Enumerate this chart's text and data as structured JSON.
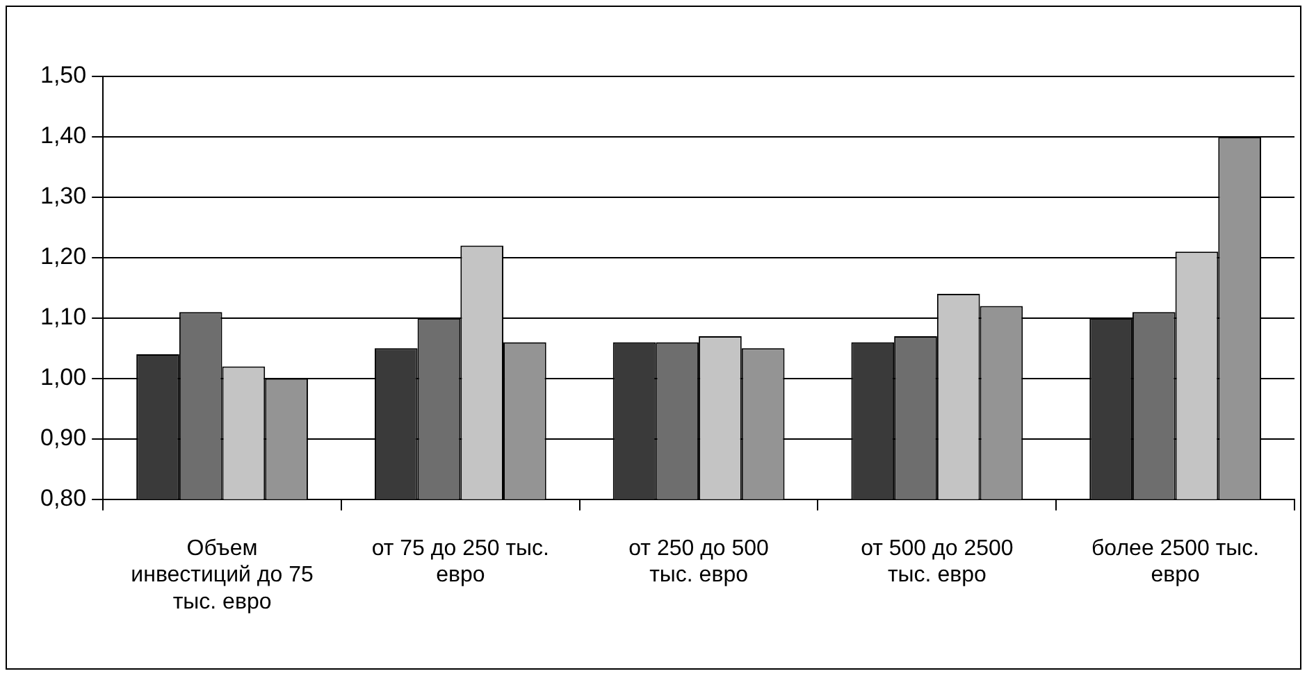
{
  "chart_data": {
    "type": "bar",
    "categories": [
      "Объем инвестиций до 75 тыс. евро",
      "от 75 до 250 тыс. евро",
      "от 250 до 500 тыс. евро",
      "от 500 до 2500 тыс. евро",
      "более 2500 тыс. евро"
    ],
    "series": [
      {
        "color": "#3a3a3a",
        "values": [
          1.04,
          1.05,
          1.06,
          1.06,
          1.1
        ]
      },
      {
        "color": "#6e6e6e",
        "values": [
          1.11,
          1.1,
          1.06,
          1.07,
          1.11
        ]
      },
      {
        "color": "#c4c4c4",
        "values": [
          1.02,
          1.22,
          1.07,
          1.14,
          1.21
        ]
      },
      {
        "color": "#949494",
        "values": [
          1.0,
          1.06,
          1.05,
          1.12,
          1.4
        ]
      }
    ],
    "ylim": [
      0.8,
      1.5
    ],
    "yticks": [
      {
        "value": 0.8,
        "label": "0,80"
      },
      {
        "value": 0.9,
        "label": "0,90"
      },
      {
        "value": 1.0,
        "label": "1,00"
      },
      {
        "value": 1.1,
        "label": "1,10"
      },
      {
        "value": 1.2,
        "label": "1,20"
      },
      {
        "value": 1.3,
        "label": "1,30"
      },
      {
        "value": 1.4,
        "label": "1,40"
      },
      {
        "value": 1.5,
        "label": "1,50"
      }
    ],
    "grid": "y",
    "legend": false
  }
}
